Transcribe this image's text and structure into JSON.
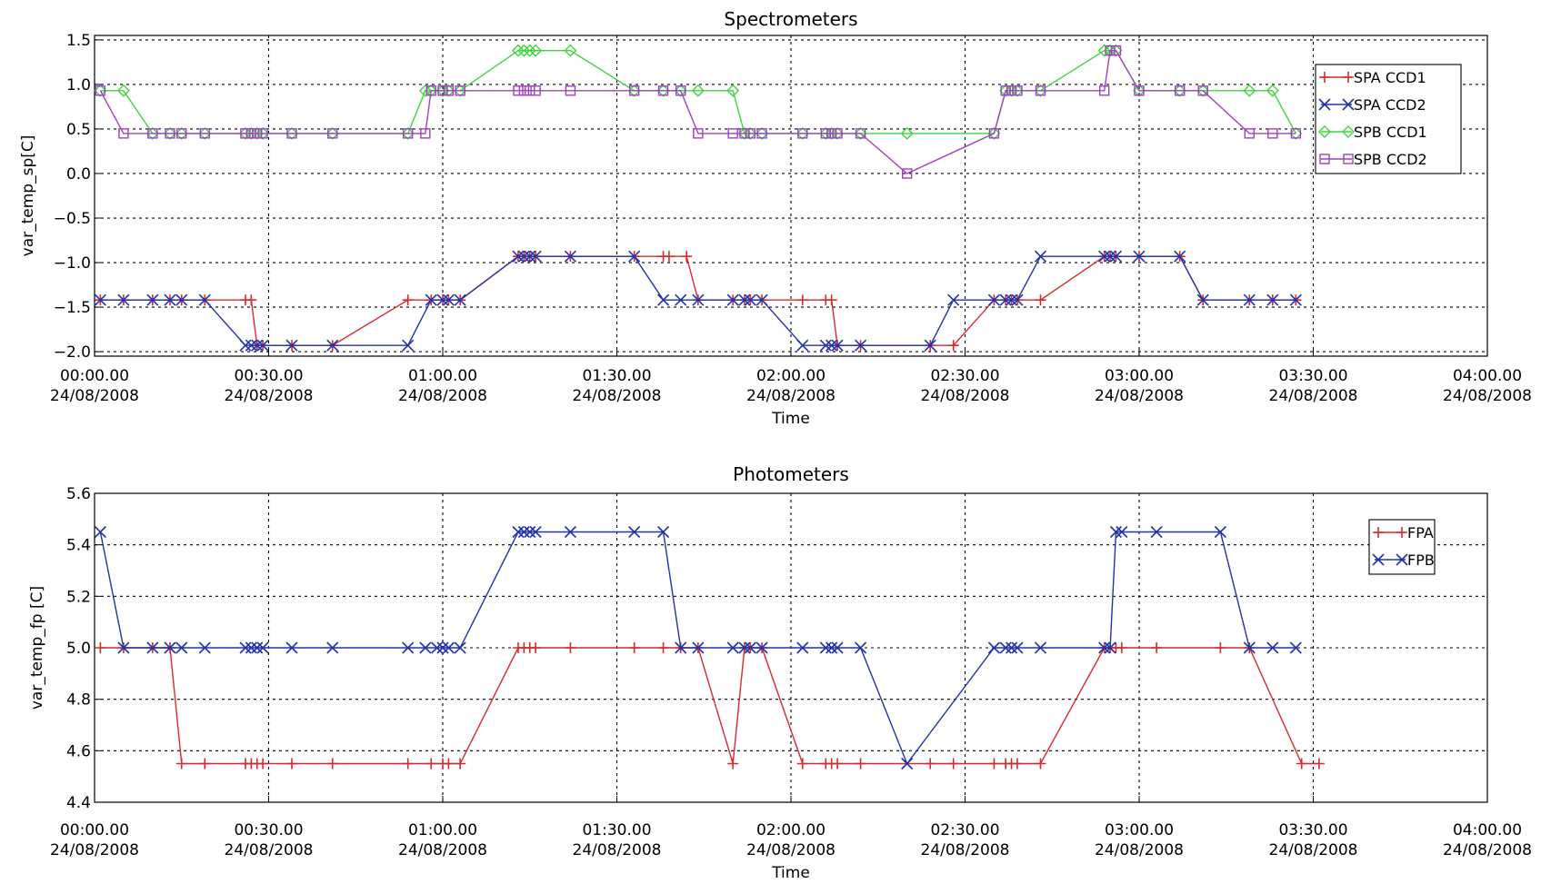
{
  "chart_data": [
    {
      "type": "line",
      "title": "Spectrometers",
      "xlabel": "Time",
      "ylabel": "var_temp_sp[C]",
      "x_unit": "minutes after 00:00:00 24/08/2008",
      "xlim": [
        0,
        240
      ],
      "ylim": [
        -2.05,
        1.55
      ],
      "grid": true,
      "legend_position": "top-right",
      "x_ticks": [
        {
          "value": 0,
          "time": "00:00.00",
          "date": "24/08/2008"
        },
        {
          "value": 30,
          "time": "00:30.00",
          "date": "24/08/2008"
        },
        {
          "value": 60,
          "time": "01:00.00",
          "date": "24/08/2008"
        },
        {
          "value": 90,
          "time": "01:30.00",
          "date": "24/08/2008"
        },
        {
          "value": 120,
          "time": "02:00.00",
          "date": "24/08/2008"
        },
        {
          "value": 150,
          "time": "02:30.00",
          "date": "24/08/2008"
        },
        {
          "value": 180,
          "time": "03:00.00",
          "date": "24/08/2008"
        },
        {
          "value": 210,
          "time": "03:30.00",
          "date": "24/08/2008"
        },
        {
          "value": 240,
          "time": "04:00.00",
          "date": "24/08/2008"
        }
      ],
      "y_ticks": [
        {
          "value": 1.5,
          "label": "1.5"
        },
        {
          "value": 1.0,
          "label": "1.0"
        },
        {
          "value": 0.5,
          "label": "0.5"
        },
        {
          "value": 0.0,
          "label": "0.0"
        },
        {
          "value": -0.5,
          "label": "−0.5"
        },
        {
          "value": -1.0,
          "label": "−1.0"
        },
        {
          "value": -1.5,
          "label": "−1.5"
        },
        {
          "value": -2.0,
          "label": "−2.0"
        }
      ],
      "series": [
        {
          "name": "SPA CCD1",
          "color": "#d62b2b",
          "marker": "plus",
          "x": [
            1,
            5,
            10,
            13,
            15,
            19,
            26,
            27,
            28,
            29,
            34,
            41,
            54,
            58,
            60,
            61,
            63,
            73,
            74,
            75,
            76,
            82,
            93,
            98,
            99,
            102,
            104,
            110,
            112,
            113,
            115,
            122,
            126,
            127,
            128,
            132,
            144,
            148,
            155,
            157,
            158,
            159,
            163,
            174,
            175,
            176,
            180,
            187,
            191,
            199,
            203,
            207
          ],
          "y": [
            -1.42,
            -1.42,
            -1.42,
            -1.42,
            -1.42,
            -1.42,
            -1.42,
            -1.42,
            -1.93,
            -1.93,
            -1.93,
            -1.93,
            -1.42,
            -1.42,
            -1.42,
            -1.42,
            -1.42,
            -0.93,
            -0.93,
            -0.93,
            -0.93,
            -0.93,
            -0.93,
            -0.93,
            -0.93,
            -0.93,
            -1.42,
            -1.42,
            -1.42,
            -1.42,
            -1.42,
            -1.42,
            -1.42,
            -1.42,
            -1.93,
            -1.93,
            -1.93,
            -1.93,
            -1.42,
            -1.42,
            -1.42,
            -1.42,
            -1.42,
            -0.93,
            -0.93,
            -0.93,
            -0.93,
            -0.93,
            -1.42,
            -1.42,
            -1.42,
            -1.42
          ]
        },
        {
          "name": "SPA CCD2",
          "color": "#2233aa",
          "marker": "x",
          "x": [
            1,
            5,
            10,
            13,
            15,
            19,
            26,
            27,
            28,
            29,
            34,
            41,
            54,
            58,
            60,
            61,
            63,
            73,
            74,
            75,
            76,
            82,
            93,
            98,
            101,
            104,
            110,
            112,
            113,
            115,
            122,
            126,
            127,
            128,
            132,
            144,
            148,
            155,
            157,
            158,
            159,
            163,
            174,
            175,
            176,
            180,
            187,
            191,
            199,
            203,
            207
          ],
          "y": [
            -1.42,
            -1.42,
            -1.42,
            -1.42,
            -1.42,
            -1.42,
            -1.93,
            -1.93,
            -1.93,
            -1.93,
            -1.93,
            -1.93,
            -1.93,
            -1.42,
            -1.42,
            -1.42,
            -1.42,
            -0.93,
            -0.93,
            -0.93,
            -0.93,
            -0.93,
            -0.93,
            -1.42,
            -1.42,
            -1.42,
            -1.42,
            -1.42,
            -1.42,
            -1.42,
            -1.93,
            -1.93,
            -1.93,
            -1.93,
            -1.93,
            -1.93,
            -1.42,
            -1.42,
            -1.42,
            -1.42,
            -1.42,
            -0.93,
            -0.93,
            -0.93,
            -0.93,
            -0.93,
            -0.93,
            -1.42,
            -1.42,
            -1.42,
            -1.42
          ]
        },
        {
          "name": "SPB CCD1",
          "color": "#3fd43f",
          "marker": "diamond",
          "x": [
            1,
            5,
            10,
            13,
            15,
            19,
            26,
            27,
            28,
            29,
            34,
            41,
            54,
            57,
            58,
            60,
            61,
            63,
            73,
            74,
            75,
            76,
            82,
            93,
            98,
            101,
            104,
            110,
            112,
            113,
            115,
            122,
            126,
            127,
            128,
            132,
            140,
            155,
            157,
            158,
            159,
            163,
            174,
            175,
            176,
            180,
            187,
            191,
            199,
            203,
            207
          ],
          "y": [
            0.93,
            0.93,
            0.45,
            0.45,
            0.45,
            0.45,
            0.45,
            0.45,
            0.45,
            0.45,
            0.45,
            0.45,
            0.45,
            0.93,
            0.93,
            0.93,
            0.93,
            0.93,
            1.38,
            1.38,
            1.38,
            1.38,
            1.38,
            0.93,
            0.93,
            0.93,
            0.93,
            0.93,
            0.45,
            0.45,
            0.45,
            0.45,
            0.45,
            0.45,
            0.45,
            0.45,
            0.45,
            0.45,
            0.93,
            0.93,
            0.93,
            0.93,
            1.38,
            1.38,
            1.38,
            0.93,
            0.93,
            0.93,
            0.93,
            0.93,
            0.45
          ]
        },
        {
          "name": "SPB CCD2",
          "color": "#a040c0",
          "marker": "square",
          "x": [
            1,
            5,
            10,
            13,
            15,
            19,
            26,
            27,
            28,
            29,
            34,
            41,
            54,
            57,
            58,
            60,
            61,
            63,
            73,
            74,
            75,
            76,
            82,
            93,
            98,
            101,
            104,
            110,
            112,
            113,
            115,
            122,
            126,
            127,
            128,
            132,
            140,
            155,
            157,
            158,
            159,
            163,
            174,
            175,
            176,
            180,
            187,
            191,
            199,
            203,
            207
          ],
          "y": [
            0.93,
            0.45,
            0.45,
            0.45,
            0.45,
            0.45,
            0.45,
            0.45,
            0.45,
            0.45,
            0.45,
            0.45,
            0.45,
            0.45,
            0.93,
            0.93,
            0.93,
            0.93,
            0.93,
            0.93,
            0.93,
            0.93,
            0.93,
            0.93,
            0.93,
            0.93,
            0.45,
            0.45,
            0.45,
            0.45,
            0.45,
            0.45,
            0.45,
            0.45,
            0.45,
            0.45,
            0.0,
            0.45,
            0.93,
            0.93,
            0.93,
            0.93,
            0.93,
            1.38,
            1.38,
            0.93,
            0.93,
            0.93,
            0.45,
            0.45,
            0.45
          ]
        }
      ]
    },
    {
      "type": "line",
      "title": "Photometers",
      "xlabel": "Time",
      "ylabel": "var_temp_fp [C]",
      "x_unit": "minutes after 00:00:00 24/08/2008",
      "xlim": [
        0,
        240
      ],
      "ylim": [
        4.4,
        5.6
      ],
      "grid": true,
      "legend_position": "top-right",
      "x_ticks": [
        {
          "value": 0,
          "time": "00:00.00",
          "date": "24/08/2008"
        },
        {
          "value": 30,
          "time": "00:30.00",
          "date": "24/08/2008"
        },
        {
          "value": 60,
          "time": "01:00.00",
          "date": "24/08/2008"
        },
        {
          "value": 90,
          "time": "01:30.00",
          "date": "24/08/2008"
        },
        {
          "value": 120,
          "time": "02:00.00",
          "date": "24/08/2008"
        },
        {
          "value": 150,
          "time": "02:30.00",
          "date": "24/08/2008"
        },
        {
          "value": 180,
          "time": "03:00.00",
          "date": "24/08/2008"
        },
        {
          "value": 210,
          "time": "03:30.00",
          "date": "24/08/2008"
        },
        {
          "value": 240,
          "time": "04:00.00",
          "date": "24/08/2008"
        }
      ],
      "y_ticks": [
        {
          "value": 5.6,
          "label": "5.6"
        },
        {
          "value": 5.4,
          "label": "5.4"
        },
        {
          "value": 5.2,
          "label": "5.2"
        },
        {
          "value": 5.0,
          "label": "5.0"
        },
        {
          "value": 4.8,
          "label": "4.8"
        },
        {
          "value": 4.6,
          "label": "4.6"
        },
        {
          "value": 4.4,
          "label": "4.4"
        }
      ],
      "series": [
        {
          "name": "FPA",
          "color": "#d62b2b",
          "marker": "plus",
          "x": [
            1,
            5,
            10,
            13,
            15,
            19,
            26,
            27,
            28,
            29,
            34,
            41,
            54,
            58,
            60,
            61,
            63,
            73,
            74,
            75,
            76,
            82,
            93,
            98,
            101,
            104,
            110,
            112,
            113,
            115,
            122,
            126,
            127,
            128,
            132,
            144,
            148,
            155,
            157,
            158,
            159,
            163,
            174,
            175,
            176,
            177,
            183,
            194,
            199,
            208,
            211
          ],
          "y": [
            5.0,
            5.0,
            5.0,
            5.0,
            4.55,
            4.55,
            4.55,
            4.55,
            4.55,
            4.55,
            4.55,
            4.55,
            4.55,
            4.55,
            4.55,
            4.55,
            4.55,
            5.0,
            5.0,
            5.0,
            5.0,
            5.0,
            5.0,
            5.0,
            5.0,
            5.0,
            4.55,
            5.0,
            5.0,
            5.0,
            4.55,
            4.55,
            4.55,
            4.55,
            4.55,
            4.55,
            4.55,
            4.55,
            4.55,
            4.55,
            4.55,
            4.55,
            5.0,
            5.0,
            5.0,
            5.0,
            5.0,
            5.0,
            5.0,
            4.55,
            4.55
          ]
        },
        {
          "name": "FPB",
          "color": "#2233aa",
          "marker": "x",
          "x": [
            1,
            5,
            10,
            13,
            15,
            19,
            26,
            27,
            28,
            29,
            34,
            41,
            54,
            57,
            59,
            60,
            61,
            63,
            73,
            74,
            75,
            76,
            82,
            93,
            98,
            101,
            104,
            110,
            112,
            113,
            115,
            122,
            126,
            127,
            128,
            132,
            140,
            155,
            157,
            158,
            159,
            163,
            174,
            175,
            176,
            177,
            183,
            194,
            199,
            203,
            207
          ],
          "y": [
            5.45,
            5.0,
            5.0,
            5.0,
            5.0,
            5.0,
            5.0,
            5.0,
            5.0,
            5.0,
            5.0,
            5.0,
            5.0,
            5.0,
            5.0,
            5.0,
            5.0,
            5.0,
            5.45,
            5.45,
            5.45,
            5.45,
            5.45,
            5.45,
            5.45,
            5.0,
            5.0,
            5.0,
            5.0,
            5.0,
            5.0,
            5.0,
            5.0,
            5.0,
            5.0,
            5.0,
            4.55,
            5.0,
            5.0,
            5.0,
            5.0,
            5.0,
            5.0,
            5.0,
            5.45,
            5.45,
            5.45,
            5.45,
            5.0,
            5.0,
            5.0
          ]
        }
      ]
    }
  ]
}
